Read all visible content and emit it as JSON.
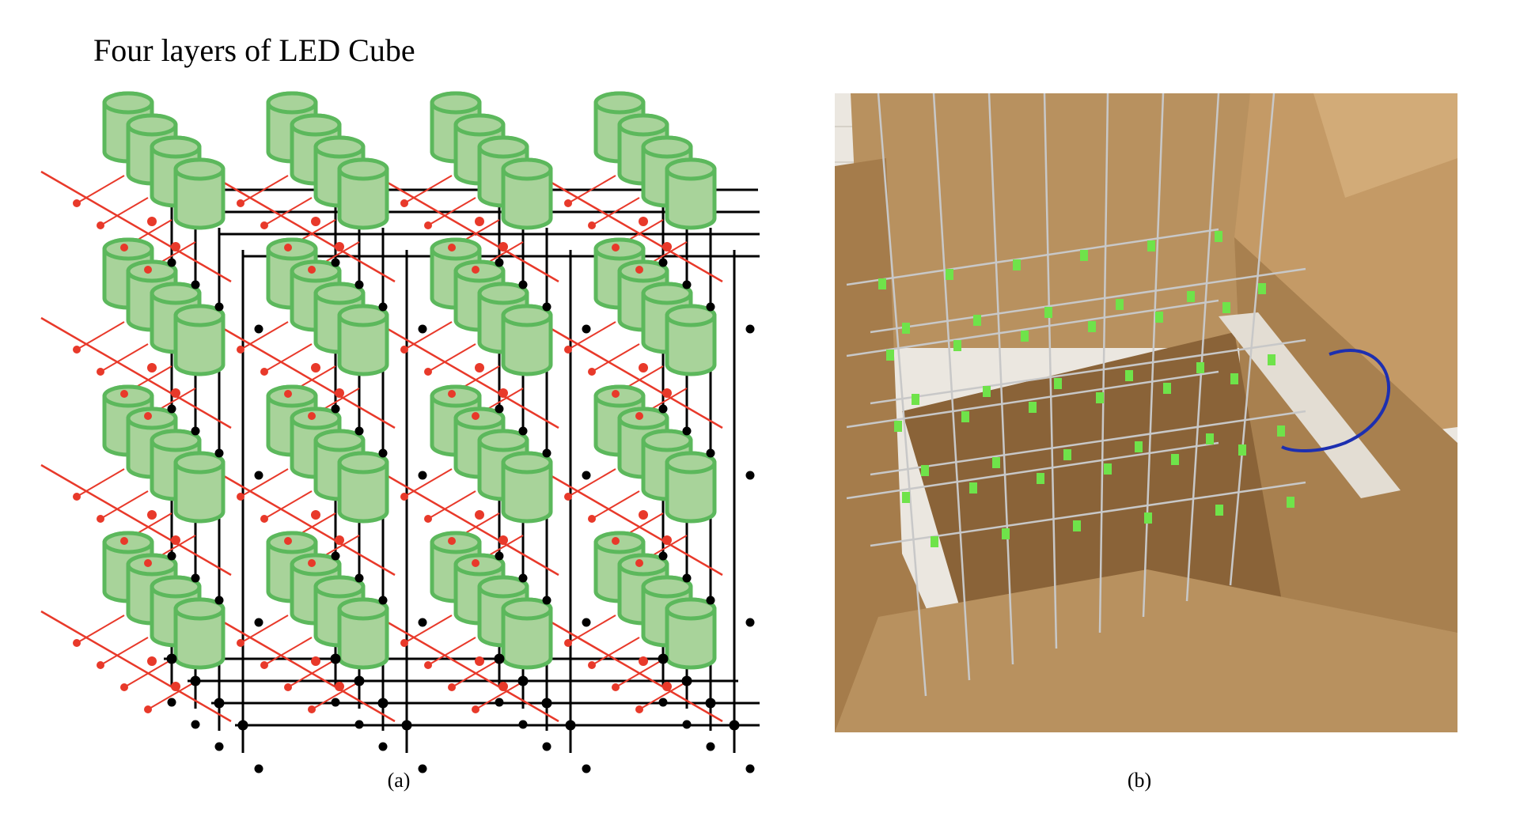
{
  "diagram": {
    "title": "Four layers of LED Cube",
    "caption": "(a)",
    "colors": {
      "led_fill": "#a8d39a",
      "led_stroke": "#5cb85c",
      "anode_wire": "#e8392a",
      "cathode_wire": "#000000"
    }
  },
  "photo": {
    "caption": "(b)",
    "colors": {
      "cardboard": "#b48a5a",
      "cardboard_dark": "#8a6338",
      "wall": "#ebe7e0",
      "wire": "#c8c8c8",
      "led": "#6fe34a",
      "breadboard": "#e3ddd3",
      "blue_wire": "#1d2fb0"
    }
  }
}
